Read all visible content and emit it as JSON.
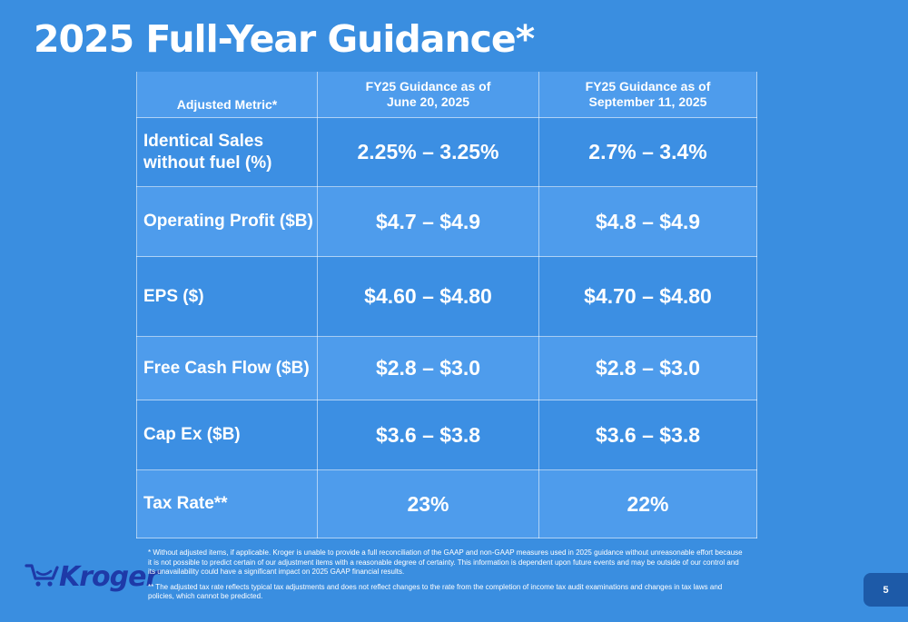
{
  "title": "2025 Full-Year Guidance*",
  "table": {
    "headers": {
      "metric": "Adjusted Metric*",
      "col1_line1": "FY25 Guidance as of",
      "col1_line2": "June 20, 2025",
      "col2_line1": "FY25 Guidance as of",
      "col2_line2": "September 11, 2025"
    },
    "rows": [
      {
        "metric_line1": "Identical Sales",
        "metric_line2": "without fuel (%)",
        "june": "2.25% – 3.25%",
        "sept": "2.7% – 3.4%"
      },
      {
        "metric_line1": "Operating Profit ($B)",
        "metric_line2": "",
        "june": "$4.7 – $4.9",
        "sept": "$4.8 – $4.9"
      },
      {
        "metric_line1": "EPS ($)",
        "metric_line2": "",
        "june": "$4.60 – $4.80",
        "sept": "$4.70 – $4.80"
      },
      {
        "metric_line1": "Free Cash Flow ($B)",
        "metric_line2": "",
        "june": "$2.8 – $3.0",
        "sept": "$2.8 – $3.0"
      },
      {
        "metric_line1": "Cap Ex ($B)",
        "metric_line2": "",
        "june": "$3.6 – $3.8",
        "sept": "$3.6 – $3.8"
      },
      {
        "metric_line1": "Tax Rate**",
        "metric_line2": "",
        "june": "23%",
        "sept": "22%"
      }
    ]
  },
  "footnotes": {
    "note1": "* Without adjusted items, if applicable. Kroger is unable to provide a full reconciliation of the GAAP and non-GAAP measures used in 2025 guidance without unreasonable effort because it is not possible to predict certain of our adjustment items with a reasonable degree of certainty. This information is dependent upon future events and may be outside of our control and its unavailability could have a significant impact on 2025 GAAP financial results.",
    "note2": "** The adjusted tax rate reflects typical tax adjustments and does not reflect changes to the rate from the completion of income tax audit examinations and changes in tax laws and policies, which cannot be predicted."
  },
  "logo": {
    "text": "Kroger",
    "icon": "kroger-cart-icon",
    "color": "#1e3aa8"
  },
  "page_number": "5",
  "colors": {
    "background": "#3a8ee0",
    "row_alt": "#4e9cec",
    "page_badge": "#1d5aa8"
  }
}
